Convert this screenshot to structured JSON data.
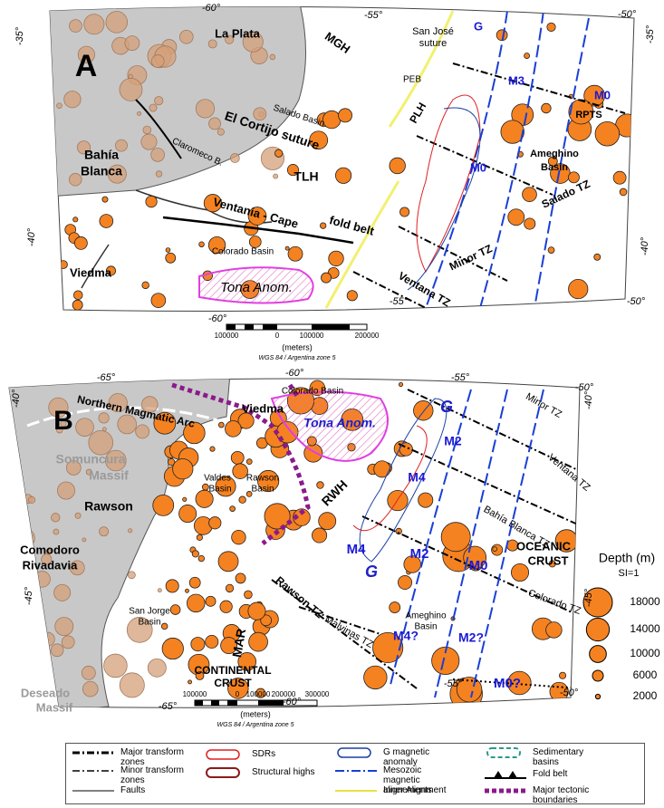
{
  "panel_a": {
    "labels": [
      "A",
      "La Plata",
      "MGH",
      "San José",
      "suture",
      "PEB",
      "Salado Basin",
      "El Cortijo suture",
      "PLH",
      "M3",
      "M0",
      "RPTS",
      "G",
      "Bahía",
      "Blanca",
      "Claromeco B.",
      "TLH",
      "Ameghino",
      "Basin",
      "M0",
      "Salado TZ",
      "Ventania - Cape",
      "fold belt",
      "Colorado Basin",
      "Minor TZ",
      "Viedma",
      "Tona Anom.",
      "Ventana TZ"
    ],
    "graticule": {
      "top": [
        "-60°",
        "-55°",
        "-50°"
      ],
      "left": [
        "-35°",
        "-40°"
      ],
      "right": [
        "-35°",
        "-40°"
      ],
      "bottom": [
        "-60°",
        "-55°",
        "-50°"
      ]
    },
    "scale": {
      "ticks": [
        "100000",
        "0",
        "100000",
        "200000"
      ],
      "unit": "(meters)",
      "projection": "WGS 84 / Argentina zone 5"
    }
  },
  "panel_b": {
    "labels": [
      "B",
      "Northern Magmatic Arc",
      "Viedma",
      "Colorado Basin",
      "Tona Anom.",
      "G",
      "Minor TZ",
      "M2",
      "Somuncura",
      "Massif",
      "Valdes",
      "Basin",
      "Rawson",
      "Basin",
      "RWH",
      "M4",
      "Ventana TZ",
      "Rawson",
      "Bahía Blanca TZ",
      "Comodoro",
      "Rivadavia",
      "M4",
      "M2",
      "M0",
      "OCEANIC",
      "CRUST",
      "G",
      "San Jorge",
      "Basin",
      "Rawson TZ",
      "Ameghino",
      "Basin",
      "Colorado TZ",
      "Malvinas TZ",
      "M4?",
      "M2?",
      "MAR",
      "CONTINENTAL",
      "CRUST",
      "M0?",
      "Deseado",
      "Massif"
    ],
    "graticule": {
      "top": [
        "-65°",
        "-60°",
        "-55°",
        "-50°"
      ],
      "left": [
        "-40°",
        "-45°"
      ],
      "right": [
        "-40°",
        "-45°"
      ],
      "bottom": [
        "-65°",
        "-60°",
        "-55°",
        "-50°"
      ]
    },
    "scale": {
      "ticks": [
        "100000",
        "0",
        "100000",
        "200000",
        "300000"
      ],
      "unit": "(meters)",
      "projection": "WGS 84 / Argentina zone 5"
    }
  },
  "depth_legend": {
    "title": "Depth (m)",
    "subtitle": "SI=1",
    "values": [
      18000,
      14000,
      10000,
      6000,
      2000
    ]
  },
  "legend": {
    "items": [
      "Major transform zones",
      "Minor transform zones",
      "Faults",
      "SDRs",
      "Structural highs",
      "G magnetic anomaly",
      "Mesozoic magnetic alignements",
      "Inner Alignment",
      "Sedimentary basins",
      "Fold belt",
      "Major tectonic boundaries"
    ]
  }
}
